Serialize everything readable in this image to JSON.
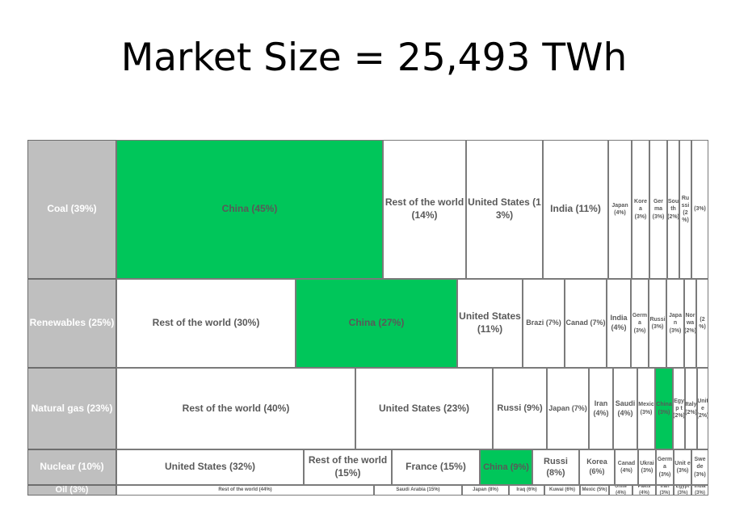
{
  "title": "Market Size = 25,493 TWh",
  "chart_data": {
    "type": "treemap",
    "title": "Market Size = 25,493 TWh",
    "total": 25493,
    "unit": "TWh",
    "highlight_color": "#00c65a",
    "rows": [
      {
        "label": "Coal (39%)",
        "share": 39,
        "cells": [
          {
            "label": "China (45%)",
            "value": 45,
            "highlight": true
          },
          {
            "label": "Rest of the world (14%)",
            "value": 14
          },
          {
            "label": "United States (13%)",
            "value": 13
          },
          {
            "label": "India (11%)",
            "value": 11
          },
          {
            "label": "Japan (4%)",
            "value": 4
          },
          {
            "label": "Kore a (3%)",
            "value": 3
          },
          {
            "label": "Ger ma (3%)",
            "value": 3
          },
          {
            "label": "Sou th (2%)",
            "value": 2
          },
          {
            "label": "Ru ssi (2 %)",
            "value": 2
          },
          {
            "label": "(3%)",
            "value": 3
          }
        ]
      },
      {
        "label": "Renewables (25%)",
        "share": 25,
        "cells": [
          {
            "label": "Rest of the world (30%)",
            "value": 30
          },
          {
            "label": "China (27%)",
            "value": 27,
            "highlight": true
          },
          {
            "label": "United States (11%)",
            "value": 11
          },
          {
            "label": "Brazi (7%)",
            "value": 7
          },
          {
            "label": "Canad (7%)",
            "value": 7
          },
          {
            "label": "India (4%)",
            "value": 4
          },
          {
            "label": "Germ a (3%)",
            "value": 3
          },
          {
            "label": "Russi (3%)",
            "value": 3
          },
          {
            "label": "Japa n (3%)",
            "value": 3
          },
          {
            "label": "Nor wa (2%)",
            "value": 2
          },
          {
            "label": "(2 %)",
            "value": 2
          }
        ]
      },
      {
        "label": "Natural gas (23%)",
        "share": 23,
        "cells": [
          {
            "label": "Rest of the world (40%)",
            "value": 40
          },
          {
            "label": "United States (23%)",
            "value": 23
          },
          {
            "label": "Russi (9%)",
            "value": 9
          },
          {
            "label": "Japan (7%)",
            "value": 7
          },
          {
            "label": "Iran (4%)",
            "value": 4
          },
          {
            "label": "Saudi (4%)",
            "value": 4
          },
          {
            "label": "Mexic (3%)",
            "value": 3
          },
          {
            "label": "China (3%)",
            "value": 3,
            "highlight": true
          },
          {
            "label": "Egyp t (2%)",
            "value": 2
          },
          {
            "label": "Italy (2%)",
            "value": 2
          },
          {
            "label": "Unit e (2%)",
            "value": 2
          }
        ]
      },
      {
        "label": "Nuclear  (10%)",
        "share": 10,
        "cells": [
          {
            "label": "United States (32%)",
            "value": 32
          },
          {
            "label": "Rest of the world (15%)",
            "value": 15
          },
          {
            "label": "France (15%)",
            "value": 15
          },
          {
            "label": "China (9%)",
            "value": 9,
            "highlight": true
          },
          {
            "label": "Russi (8%)",
            "value": 8
          },
          {
            "label": "Korea (6%)",
            "value": 6
          },
          {
            "label": "Canad (4%)",
            "value": 4
          },
          {
            "label": "Ukrai (3%)",
            "value": 3
          },
          {
            "label": "Germ a (3%)",
            "value": 3
          },
          {
            "label": "Unit e (3%)",
            "value": 3
          },
          {
            "label": "Swe de (3%)",
            "value": 3
          }
        ]
      },
      {
        "label": "Oil (3%)",
        "share": 3,
        "cells": [
          {
            "label": "Rest of the world (44%)",
            "value": 44
          },
          {
            "label": "Saudi Arabia (15%)",
            "value": 15
          },
          {
            "label": "Japan (8%)",
            "value": 8
          },
          {
            "label": "Iraq (6%)",
            "value": 6
          },
          {
            "label": "Kuwai (6%)",
            "value": 6
          },
          {
            "label": "Mexic (5%)",
            "value": 5
          },
          {
            "label": "Unite (4%)",
            "value": 4
          },
          {
            "label": "Pakis (4%)",
            "value": 4
          },
          {
            "label": "Iran (3%)",
            "value": 3
          },
          {
            "label": "Egypt (3%)",
            "value": 3
          },
          {
            "label": "India (3%)",
            "value": 3
          }
        ]
      }
    ]
  }
}
